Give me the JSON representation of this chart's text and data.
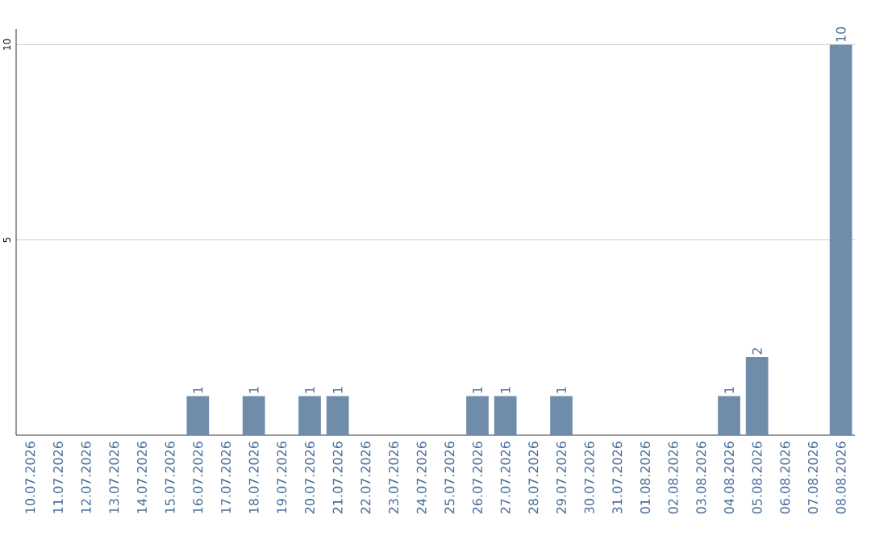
{
  "chart_data": {
    "type": "bar",
    "categories": [
      "10.07.2026",
      "11.07.2026",
      "12.07.2026",
      "13.07.2026",
      "14.07.2026",
      "15.07.2026",
      "16.07.2026",
      "17.07.2026",
      "18.07.2026",
      "19.07.2026",
      "20.07.2026",
      "21.07.2026",
      "22.07.2026",
      "23.07.2026",
      "24.07.2026",
      "25.07.2026",
      "26.07.2026",
      "27.07.2026",
      "28.07.2026",
      "29.07.2026",
      "30.07.2026",
      "31.07.2026",
      "01.08.2026",
      "02.08.2026",
      "03.08.2026",
      "04.08.2026",
      "05.08.2026",
      "06.08.2026",
      "07.08.2026",
      "08.08.2026"
    ],
    "values": [
      0,
      0,
      0,
      0,
      0,
      0,
      1,
      0,
      1,
      0,
      1,
      1,
      0,
      0,
      0,
      0,
      1,
      1,
      0,
      1,
      0,
      0,
      0,
      0,
      0,
      1,
      2,
      0,
      0,
      10
    ],
    "value_labels": [
      null,
      null,
      null,
      null,
      null,
      null,
      "1",
      null,
      "1",
      null,
      "1",
      "1",
      null,
      null,
      null,
      null,
      "1",
      "1",
      null,
      "1",
      null,
      null,
      null,
      null,
      null,
      "1",
      "2",
      null,
      null,
      "10"
    ],
    "color": "#6f8dab",
    "ylim": [
      0,
      10.4
    ],
    "yticks": [
      5,
      10
    ],
    "grid": "y"
  }
}
